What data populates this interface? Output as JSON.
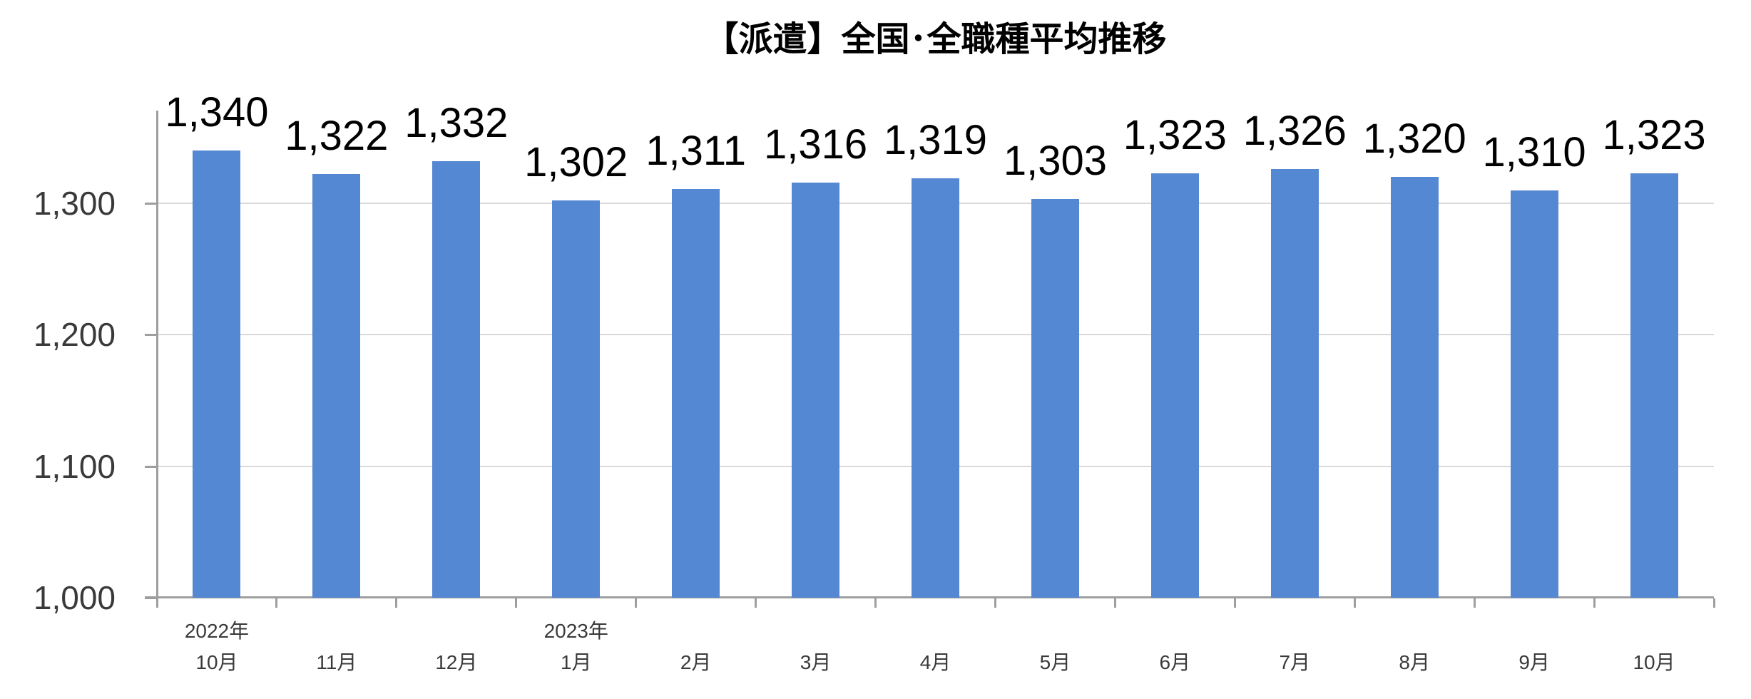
{
  "chart_data": {
    "type": "bar",
    "title": "【派遣】全国･全職種平均推移",
    "categories": [
      {
        "year": "2022年",
        "month": "10月"
      },
      {
        "month": "11月"
      },
      {
        "month": "12月"
      },
      {
        "year": "2023年",
        "month": "1月"
      },
      {
        "month": "2月"
      },
      {
        "month": "3月"
      },
      {
        "month": "4月"
      },
      {
        "month": "5月"
      },
      {
        "month": "6月"
      },
      {
        "month": "7月"
      },
      {
        "month": "8月"
      },
      {
        "month": "9月"
      },
      {
        "month": "10月"
      }
    ],
    "values": [
      1340,
      1322,
      1332,
      1302,
      1311,
      1316,
      1319,
      1303,
      1323,
      1326,
      1320,
      1310,
      1323
    ],
    "value_labels": [
      "1,340",
      "1,322",
      "1,332",
      "1,302",
      "1,311",
      "1,316",
      "1,319",
      "1,303",
      "1,323",
      "1,326",
      "1,320",
      "1,310",
      "1,323"
    ],
    "xlabel": "",
    "ylabel": "",
    "ylim": [
      1000,
      1370
    ],
    "yticks": [
      {
        "value": 1000,
        "label": "1,000"
      },
      {
        "value": 1100,
        "label": "1,100"
      },
      {
        "value": 1200,
        "label": "1,200"
      },
      {
        "value": 1300,
        "label": "1,300"
      }
    ],
    "grid": "horizontal-light",
    "legend": "none",
    "bar_color": "#5588d2",
    "axis_color": "#9e9e9e",
    "gridline_color": "#d9d9d9",
    "label_color": "#000000"
  }
}
